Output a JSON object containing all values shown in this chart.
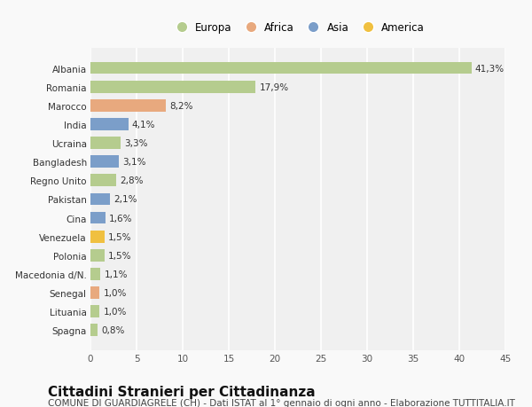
{
  "countries": [
    "Albania",
    "Romania",
    "Marocco",
    "India",
    "Ucraina",
    "Bangladesh",
    "Regno Unito",
    "Pakistan",
    "Cina",
    "Venezuela",
    "Polonia",
    "Macedonia d/N.",
    "Senegal",
    "Lituania",
    "Spagna"
  ],
  "values": [
    41.3,
    17.9,
    8.2,
    4.1,
    3.3,
    3.1,
    2.8,
    2.1,
    1.6,
    1.5,
    1.5,
    1.1,
    1.0,
    1.0,
    0.8
  ],
  "labels": [
    "41,3%",
    "17,9%",
    "8,2%",
    "4,1%",
    "3,3%",
    "3,1%",
    "2,8%",
    "2,1%",
    "1,6%",
    "1,5%",
    "1,5%",
    "1,1%",
    "1,0%",
    "1,0%",
    "0,8%"
  ],
  "continents": [
    "Europa",
    "Europa",
    "Africa",
    "Asia",
    "Europa",
    "Asia",
    "Europa",
    "Asia",
    "Asia",
    "America",
    "Europa",
    "Europa",
    "Africa",
    "Europa",
    "Europa"
  ],
  "colors": {
    "Europa": "#b5cc8e",
    "Africa": "#e8a97e",
    "Asia": "#7b9ec9",
    "America": "#f0c040"
  },
  "xlim": [
    0,
    45
  ],
  "xticks": [
    0,
    5,
    10,
    15,
    20,
    25,
    30,
    35,
    40,
    45
  ],
  "title": "Cittadini Stranieri per Cittadinanza",
  "subtitle": "COMUNE DI GUARDIAGRELE (CH) - Dati ISTAT al 1° gennaio di ogni anno - Elaborazione TUTTITALIA.IT",
  "background_color": "#f9f9f9",
  "plot_bg_color": "#f0f0f0",
  "grid_color": "#ffffff",
  "bar_height": 0.65,
  "title_fontsize": 11,
  "subtitle_fontsize": 7.5,
  "label_fontsize": 7.5,
  "tick_fontsize": 7.5,
  "legend_fontsize": 8.5,
  "legend_order": [
    "Europa",
    "Africa",
    "Asia",
    "America"
  ]
}
